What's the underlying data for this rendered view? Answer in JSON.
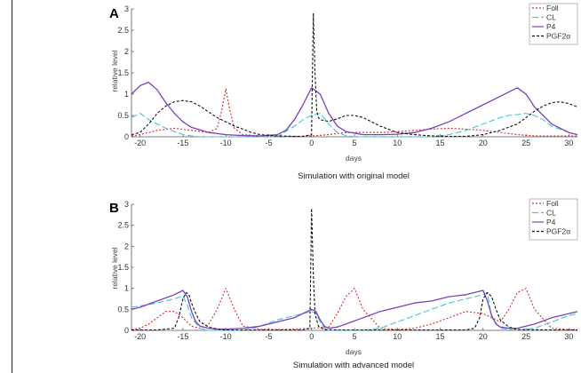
{
  "chart_data": [
    {
      "panel_label": "A",
      "type": "line",
      "title": "Simulation with original model",
      "xlabel": "days",
      "ylabel": "relative level",
      "xlim": [
        -21,
        31
      ],
      "ylim": [
        0,
        3
      ],
      "xticks": [
        -20,
        -15,
        -10,
        -5,
        0,
        5,
        10,
        15,
        20,
        25,
        30
      ],
      "yticks": [
        0,
        0.5,
        1,
        1.5,
        2,
        2.5,
        3
      ],
      "ytick_labels": [
        "0",
        "0.5",
        "1",
        "1.5",
        "2",
        "2.5",
        "3"
      ],
      "legend_position": "top-right",
      "series": [
        {
          "name": "Foll",
          "color": "#d62728",
          "dash": "2,2",
          "x": [
            -21,
            -20,
            -18,
            -16,
            -14,
            -12,
            -11,
            -10.5,
            -10,
            -9.5,
            -9,
            -8,
            -6,
            -4,
            -2,
            0,
            2,
            4,
            6,
            8,
            10,
            12,
            14,
            16,
            18,
            20,
            22,
            24,
            26,
            28,
            30,
            31
          ],
          "y": [
            0.02,
            0.05,
            0.15,
            0.2,
            0.15,
            0.1,
            0.2,
            0.6,
            1.12,
            0.6,
            0.2,
            0.05,
            0.02,
            0.01,
            0.01,
            0.02,
            0.05,
            0.1,
            0.1,
            0.1,
            0.12,
            0.15,
            0.18,
            0.2,
            0.18,
            0.15,
            0.1,
            0.05,
            0.02,
            0.02,
            0.02,
            0.02
          ]
        },
        {
          "name": "CL",
          "color": "#3fc8d0",
          "dash": "7,3",
          "x": [
            -21,
            -20,
            -19,
            -18,
            -17,
            -16,
            -15,
            -14,
            -13,
            -12,
            -11,
            -10,
            -9,
            -8,
            -6,
            -4,
            -2,
            -1,
            0,
            1,
            2,
            3,
            4,
            5,
            6,
            8,
            10,
            12,
            14,
            16,
            18,
            20,
            22,
            23,
            24,
            25,
            26,
            27,
            28,
            30,
            31
          ],
          "y": [
            0.45,
            0.55,
            0.4,
            0.3,
            0.2,
            0.12,
            0.05,
            0.02,
            0,
            0,
            0,
            0,
            0,
            0,
            0,
            0,
            0.25,
            0.4,
            0.5,
            0.55,
            0.3,
            0.1,
            0.03,
            0,
            0,
            0,
            0,
            0,
            0,
            0.05,
            0.15,
            0.3,
            0.45,
            0.5,
            0.52,
            0.55,
            0.5,
            0.4,
            0.25,
            0.1,
            0.05
          ]
        },
        {
          "name": "P4",
          "color": "#7b3fc0",
          "dash": "",
          "x": [
            -21,
            -20,
            -19,
            -18,
            -17,
            -16,
            -15,
            -14,
            -12,
            -10,
            -8,
            -6,
            -4,
            -3,
            -2,
            -1,
            0,
            1,
            2,
            3,
            4,
            6,
            8,
            10,
            12,
            14,
            16,
            18,
            20,
            22,
            23,
            24,
            25,
            26,
            28,
            30,
            31
          ],
          "y": [
            1.0,
            1.2,
            1.28,
            1.1,
            0.8,
            0.55,
            0.35,
            0.22,
            0.1,
            0.05,
            0.03,
            0.02,
            0.05,
            0.15,
            0.4,
            0.75,
            1.15,
            1.0,
            0.55,
            0.25,
            0.12,
            0.05,
            0.05,
            0.06,
            0.1,
            0.2,
            0.35,
            0.55,
            0.75,
            0.95,
            1.05,
            1.15,
            1.0,
            0.7,
            0.3,
            0.1,
            0.05
          ]
        },
        {
          "name": "PGF2α",
          "color": "#111111",
          "dash": "3,2",
          "x": [
            -21,
            -20,
            -19,
            -18,
            -17,
            -16,
            -15,
            -14,
            -13,
            -12,
            -11,
            -10,
            -9,
            -8,
            -7,
            -6,
            -4,
            -2,
            -1,
            0,
            0.2,
            0.4,
            0.6,
            0.8,
            1,
            1.5,
            2,
            3,
            4,
            5,
            6,
            7,
            8,
            10,
            12,
            14,
            16,
            18,
            20,
            22,
            24,
            25,
            26,
            27,
            28,
            29,
            30,
            31
          ],
          "y": [
            0.05,
            0.1,
            0.3,
            0.55,
            0.72,
            0.82,
            0.85,
            0.82,
            0.72,
            0.58,
            0.45,
            0.35,
            0.25,
            0.18,
            0.1,
            0.05,
            0.02,
            0.01,
            0.01,
            0.05,
            2.9,
            1.5,
            0.6,
            0.45,
            0.4,
            0.38,
            0.36,
            0.42,
            0.5,
            0.5,
            0.45,
            0.35,
            0.25,
            0.1,
            0.05,
            0.02,
            0.01,
            0.01,
            0.05,
            0.15,
            0.3,
            0.45,
            0.6,
            0.72,
            0.8,
            0.82,
            0.78,
            0.7
          ]
        }
      ]
    },
    {
      "panel_label": "B",
      "type": "line",
      "title": "Simulation with advanced model",
      "xlabel": "days",
      "ylabel": "relative level",
      "xlim": [
        -21,
        31
      ],
      "ylim": [
        0,
        3
      ],
      "xticks": [
        -20,
        -15,
        -10,
        -5,
        0,
        5,
        10,
        15,
        20,
        25,
        30
      ],
      "yticks": [
        0,
        0.5,
        1,
        1.5,
        2,
        2.5,
        3
      ],
      "ytick_labels": [
        "0",
        "0.5",
        "1",
        "1.5",
        "2",
        "2.5",
        "3"
      ],
      "legend_position": "top-right",
      "series": [
        {
          "name": "Foll",
          "color": "#d62728",
          "dash": "2,2",
          "x": [
            -21,
            -20,
            -19,
            -18,
            -17,
            -16,
            -15,
            -14,
            -13,
            -12,
            -11,
            -10,
            -9,
            -8,
            -6,
            -4,
            -2,
            0,
            2,
            3,
            4,
            5,
            6,
            8,
            10,
            12,
            14,
            16,
            18,
            20,
            22,
            23,
            24,
            25,
            26,
            28,
            30,
            31
          ],
          "y": [
            0.02,
            0.05,
            0.15,
            0.3,
            0.45,
            0.45,
            0.3,
            0.1,
            0.05,
            0.15,
            0.5,
            1.0,
            0.5,
            0.1,
            0.03,
            0.02,
            0.03,
            0.05,
            0.08,
            0.4,
            0.8,
            1.0,
            0.5,
            0.05,
            0.02,
            0.05,
            0.15,
            0.3,
            0.45,
            0.4,
            0.2,
            0.5,
            0.9,
            1.0,
            0.5,
            0.05,
            0.02,
            0.02
          ]
        },
        {
          "name": "CL",
          "color": "#3fc8d0",
          "dash": "7,3",
          "x": [
            -21,
            -20,
            -18,
            -16,
            -15,
            -14.5,
            -14,
            -13,
            -12,
            -10,
            -8,
            -6,
            -4,
            -2,
            0,
            0.5,
            1,
            1.5,
            2,
            4,
            6,
            8,
            10,
            12,
            14,
            16,
            18,
            20,
            20.5,
            21,
            22,
            24,
            26,
            28,
            30,
            31
          ],
          "y": [
            0.55,
            0.58,
            0.65,
            0.75,
            0.82,
            0.6,
            0.3,
            0.05,
            0,
            0,
            0,
            0.1,
            0.25,
            0.35,
            0.45,
            0.4,
            0.2,
            0.05,
            0,
            0,
            0,
            0.05,
            0.2,
            0.35,
            0.5,
            0.65,
            0.75,
            0.85,
            0.9,
            0.3,
            0.05,
            0,
            0.05,
            0.2,
            0.35,
            0.4
          ]
        },
        {
          "name": "P4",
          "color": "#7b3fc0",
          "dash": "",
          "x": [
            -21,
            -20,
            -18,
            -16,
            -15,
            -14.5,
            -14,
            -13.5,
            -13,
            -12,
            -11,
            -10,
            -8,
            -6,
            -4,
            -2,
            0,
            0.5,
            1,
            1.5,
            2,
            3,
            4,
            6,
            8,
            10,
            12,
            14,
            16,
            18,
            20,
            20.5,
            21,
            21.5,
            22,
            23,
            24,
            26,
            28,
            30,
            31
          ],
          "y": [
            0.5,
            0.55,
            0.7,
            0.85,
            0.95,
            0.8,
            0.45,
            0.2,
            0.1,
            0.05,
            0.03,
            0.03,
            0.05,
            0.1,
            0.2,
            0.3,
            0.5,
            0.45,
            0.25,
            0.1,
            0.05,
            0.08,
            0.15,
            0.3,
            0.45,
            0.55,
            0.65,
            0.7,
            0.8,
            0.85,
            0.95,
            0.7,
            0.35,
            0.15,
            0.08,
            0.05,
            0.05,
            0.15,
            0.3,
            0.4,
            0.45
          ]
        },
        {
          "name": "PGF2α",
          "color": "#111111",
          "dash": "3,2",
          "x": [
            -21,
            -18,
            -16,
            -15.5,
            -15,
            -14.6,
            -14.3,
            -14,
            -13.5,
            -13,
            -12,
            -11,
            -10,
            -5,
            -1,
            -0.2,
            0,
            0.2,
            0.4,
            0.8,
            1.5,
            3,
            10,
            18,
            19,
            19.6,
            20,
            20.5,
            21,
            21.5,
            22,
            23,
            24,
            28,
            31
          ],
          "y": [
            0.01,
            0.01,
            0.05,
            0.3,
            0.75,
            0.9,
            0.85,
            0.65,
            0.4,
            0.2,
            0.08,
            0.03,
            0.01,
            0.01,
            0.01,
            0.05,
            2.9,
            1.3,
            0.4,
            0.1,
            0.02,
            0.01,
            0.01,
            0.01,
            0.05,
            0.3,
            0.75,
            0.9,
            0.8,
            0.5,
            0.25,
            0.08,
            0.02,
            0.01,
            0.01
          ]
        }
      ]
    }
  ]
}
